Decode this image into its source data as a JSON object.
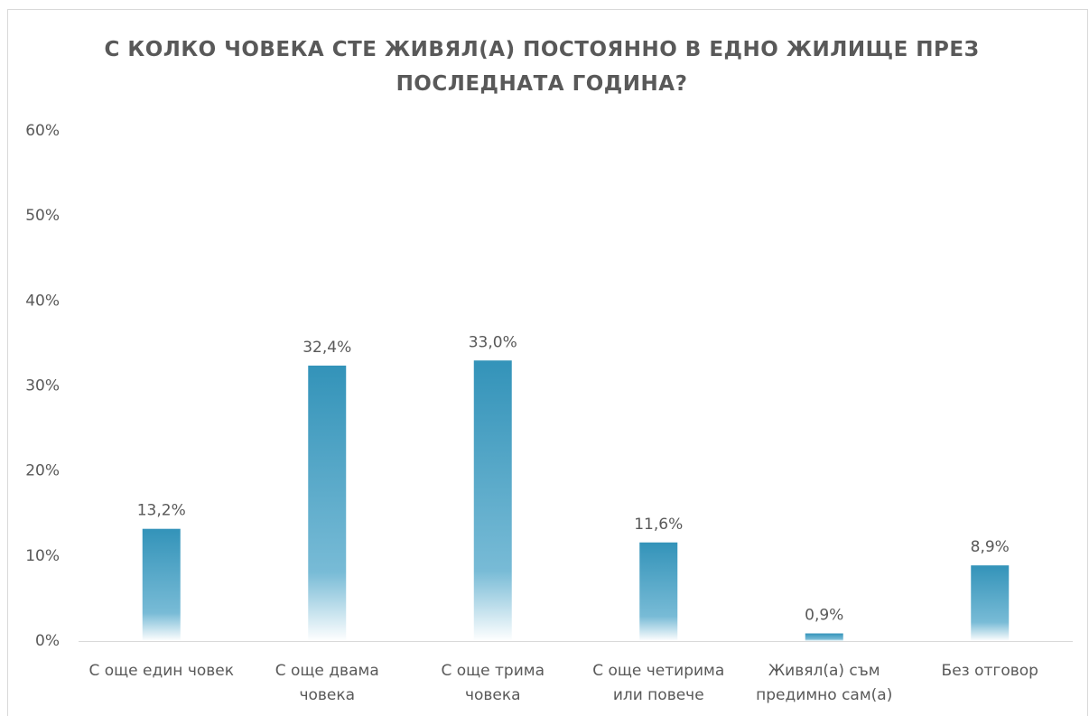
{
  "chart_data": {
    "type": "bar",
    "title": "С КОЛКО ЧОВЕКА СТЕ ЖИВЯЛ(А) ПОСТОЯННО В ЕДНО ЖИЛИЩЕ ПРЕЗ ПОСЛЕДНАТА ГОДИНА?",
    "categories": [
      "С още един човек",
      "С още двама човека",
      "С още трима човека",
      "С още четирима или повече",
      "Живял(а) съм предимно сам(а)",
      "Без отговор"
    ],
    "values": [
      13.2,
      32.4,
      33.0,
      11.6,
      0.9,
      8.9
    ],
    "value_labels": [
      "13,2%",
      "32,4%",
      "33,0%",
      "11,6%",
      "0,9%",
      "8,9%"
    ],
    "color": "#3393b9",
    "ylim": [
      0,
      60
    ],
    "yticks": [
      {
        "value": 0,
        "label": "0%"
      },
      {
        "value": 10,
        "label": "10%"
      },
      {
        "value": 20,
        "label": "20%"
      },
      {
        "value": 30,
        "label": "30%"
      },
      {
        "value": 40,
        "label": "40%"
      },
      {
        "value": 50,
        "label": "50%"
      },
      {
        "value": 60,
        "label": "60%"
      }
    ],
    "grid": false
  }
}
